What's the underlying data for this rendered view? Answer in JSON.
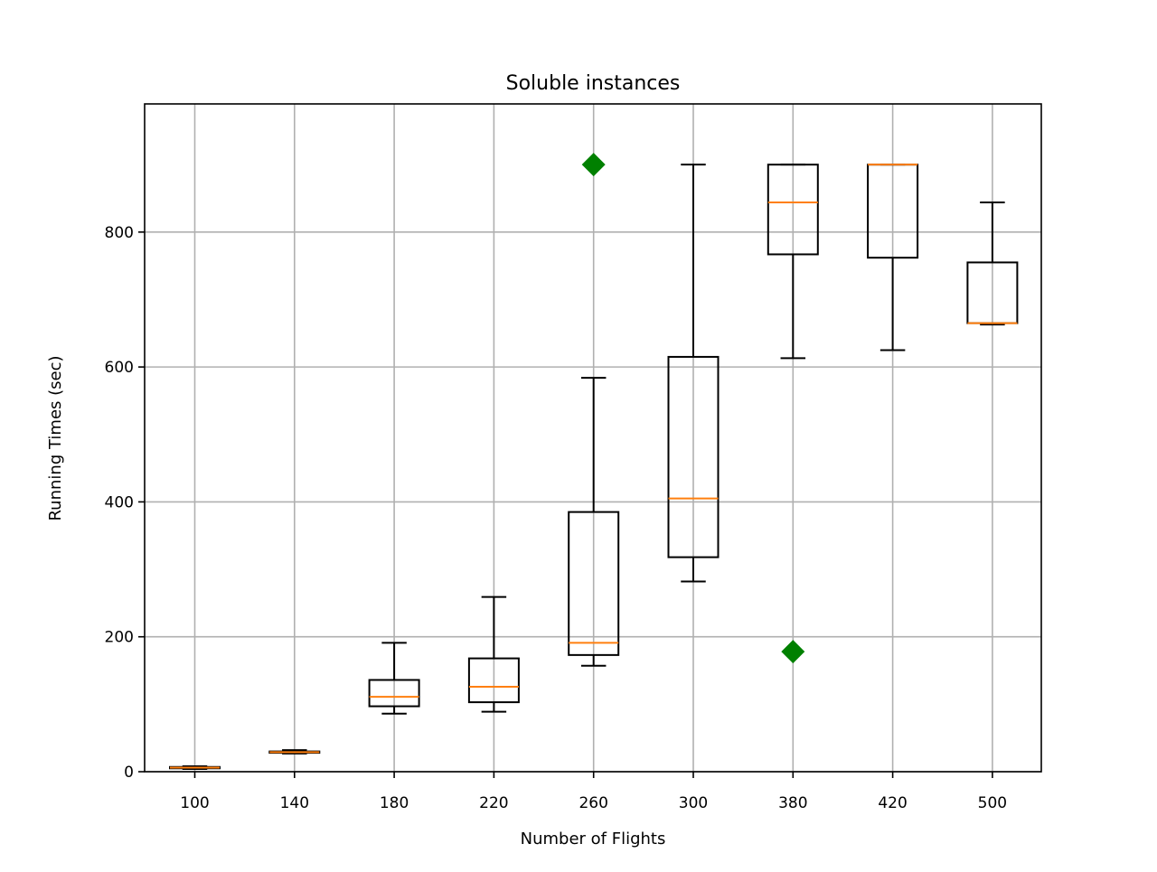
{
  "chart_data": {
    "type": "box",
    "title": "Soluble instances",
    "xlabel": "Number of Flights",
    "ylabel": "Running Times (sec)",
    "categories": [
      "100",
      "140",
      "180",
      "220",
      "260",
      "300",
      "380",
      "420",
      "500"
    ],
    "ylim": [
      0,
      990
    ],
    "yticks": [
      0,
      200,
      400,
      600,
      800
    ],
    "grid": true,
    "boxes": [
      {
        "whisker_low": 4,
        "q1": 5,
        "median": 6,
        "q3": 7,
        "whisker_high": 8,
        "outliers": []
      },
      {
        "whisker_low": 27,
        "q1": 28,
        "median": 29,
        "q3": 30,
        "whisker_high": 32,
        "outliers": []
      },
      {
        "whisker_low": 86,
        "q1": 97,
        "median": 111,
        "q3": 136,
        "whisker_high": 191,
        "outliers": []
      },
      {
        "whisker_low": 89,
        "q1": 103,
        "median": 126,
        "q3": 168,
        "whisker_high": 259,
        "outliers": []
      },
      {
        "whisker_low": 157,
        "q1": 173,
        "median": 191,
        "q3": 385,
        "whisker_high": 584,
        "outliers": [
          900
        ]
      },
      {
        "whisker_low": 282,
        "q1": 318,
        "median": 405,
        "q3": 615,
        "whisker_high": 900,
        "outliers": []
      },
      {
        "whisker_low": 613,
        "q1": 767,
        "median": 844,
        "q3": 900,
        "whisker_high": 900,
        "outliers": [
          178
        ]
      },
      {
        "whisker_low": 625,
        "q1": 762,
        "median": 900,
        "q3": 900,
        "whisker_high": 900,
        "outliers": []
      },
      {
        "whisker_low": 663,
        "q1": 665,
        "median": 665,
        "q3": 755,
        "whisker_high": 844,
        "outliers": []
      }
    ],
    "colors": {
      "box": "#000000",
      "median": "#ff7f0e",
      "outlier": "#008000",
      "grid": "#b0b0b0"
    }
  }
}
